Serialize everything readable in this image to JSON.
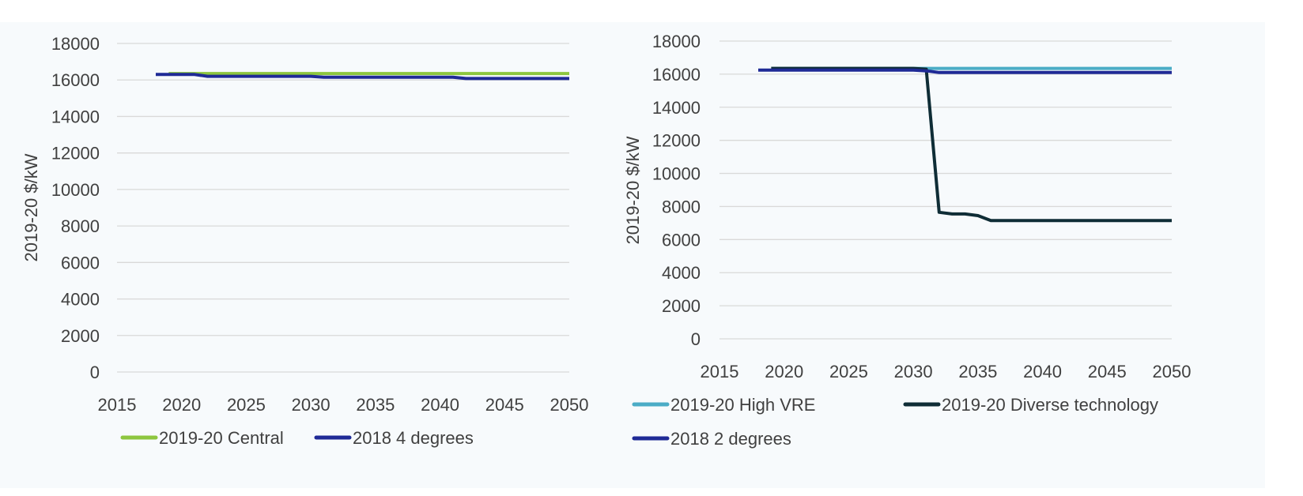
{
  "chart_data": [
    {
      "type": "line",
      "title": "",
      "xlabel": "",
      "ylabel": "2019-20 $/kW",
      "xlim": [
        2015,
        2050
      ],
      "ylim": [
        0,
        18000
      ],
      "xticks": [
        "2015",
        "2020",
        "2025",
        "2030",
        "2035",
        "2040",
        "2045",
        "2050"
      ],
      "yticks": [
        "0",
        "2000",
        "4000",
        "6000",
        "8000",
        "10000",
        "12000",
        "14000",
        "16000",
        "18000"
      ],
      "grid": true,
      "legend_position": "bottom",
      "series": [
        {
          "name": "2019-20 Central",
          "color": "#8dc63f",
          "x": [
            2019,
            2050
          ],
          "y": [
            16350,
            16350
          ]
        },
        {
          "name": "2018 4 degrees",
          "color": "#1f2a96",
          "x": [
            2018,
            2021,
            2022,
            2030,
            2031,
            2041,
            2042,
            2050
          ],
          "y": [
            16300,
            16300,
            16200,
            16200,
            16150,
            16150,
            16080,
            16080
          ]
        }
      ]
    },
    {
      "type": "line",
      "title": "",
      "xlabel": "",
      "ylabel": "2019-20 $/kW",
      "xlim": [
        2015,
        2050
      ],
      "ylim": [
        0,
        18000
      ],
      "xticks": [
        "2015",
        "2020",
        "2025",
        "2030",
        "2035",
        "2040",
        "2045",
        "2050"
      ],
      "yticks": [
        "0",
        "2000",
        "4000",
        "6000",
        "8000",
        "10000",
        "12000",
        "14000",
        "16000",
        "18000"
      ],
      "grid": true,
      "legend_position": "bottom",
      "series": [
        {
          "name": "2019-20 High VRE",
          "color": "#4bacc6",
          "x": [
            2019,
            2050
          ],
          "y": [
            16350,
            16350
          ]
        },
        {
          "name": "2019-20 Diverse technology",
          "color": "#0f2d36",
          "x": [
            2019,
            2030,
            2031,
            2032,
            2033,
            2034,
            2035,
            2036,
            2050
          ],
          "y": [
            16350,
            16350,
            16300,
            7650,
            7550,
            7550,
            7450,
            7150,
            7150
          ]
        },
        {
          "name": "2018 2 degrees",
          "color": "#1f2a96",
          "x": [
            2018,
            2030,
            2031,
            2032,
            2050
          ],
          "y": [
            16250,
            16250,
            16200,
            16100,
            16100
          ]
        }
      ]
    }
  ]
}
